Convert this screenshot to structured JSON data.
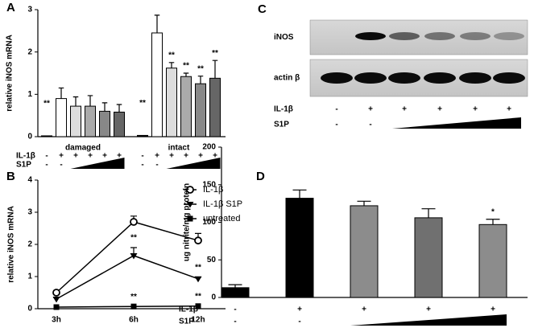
{
  "chart_data": [
    {
      "type": "bar",
      "panel": "A",
      "y_label": "relative iNOS mRNA",
      "ylim": [
        0,
        3
      ],
      "yticks": [
        0,
        1,
        2,
        3
      ],
      "groups": [
        {
          "name": "damaged",
          "values": [
            0.02,
            0.9,
            0.72,
            0.72,
            0.6,
            0.58
          ],
          "errors": [
            null,
            0.25,
            0.22,
            0.25,
            0.2,
            0.18
          ],
          "colors": [
            "#000000",
            "#ffffff",
            "#dddddd",
            "#aaaaaa",
            "#888888",
            "#666666"
          ],
          "annotations": [
            "**",
            null,
            null,
            null,
            null,
            null
          ]
        },
        {
          "name": "intact",
          "values": [
            0.03,
            2.45,
            1.62,
            1.42,
            1.25,
            1.38
          ],
          "errors": [
            null,
            0.42,
            0.13,
            0.08,
            0.18,
            0.42
          ],
          "colors": [
            "#000000",
            "#ffffff",
            "#dddddd",
            "#aaaaaa",
            "#888888",
            "#666666"
          ],
          "annotations": [
            "**",
            null,
            "**",
            "**",
            "**",
            "**"
          ]
        }
      ],
      "rows": [
        {
          "label": "IL-1β",
          "signs": [
            "-",
            "+",
            "+",
            "+",
            "+",
            "+",
            "-",
            "+",
            "+",
            "+",
            "+",
            "+"
          ]
        },
        {
          "label": "S1P",
          "signs": [
            "-",
            "-",
            null,
            null,
            null,
            null,
            "-",
            "-",
            null,
            null,
            null,
            null
          ]
        }
      ]
    },
    {
      "type": "line",
      "panel": "B",
      "y_label": "relative iNOS mRNA",
      "ylim": [
        0,
        4
      ],
      "yticks": [
        0,
        1,
        2,
        3,
        4
      ],
      "categories": [
        "3h",
        "6h",
        "12h"
      ],
      "legend": "upper right",
      "series": [
        {
          "name": "IL-1β",
          "color": "#000000",
          "marker": "circle-open",
          "values": [
            0.5,
            2.7,
            2.12
          ],
          "errors": [
            0.05,
            0.18,
            0.22
          ],
          "annotations": [
            null,
            null,
            null
          ]
        },
        {
          "name": "IL-1β S1P",
          "color": "#000000",
          "marker": "triangle-down",
          "values": [
            0.3,
            1.65,
            0.93
          ],
          "errors": [
            0.05,
            0.25,
            0.05
          ],
          "annotations": [
            null,
            "**",
            "**"
          ]
        },
        {
          "name": "untreated",
          "color": "#000000",
          "marker": "square",
          "values": [
            0.05,
            0.07,
            0.08
          ],
          "errors": [
            null,
            null,
            null
          ],
          "annotations": [
            null,
            "**",
            "**"
          ]
        }
      ]
    },
    {
      "type": "blot",
      "panel": "C",
      "bands": [
        "iNOS",
        "actin β"
      ],
      "rows": [
        {
          "label": "IL-1β",
          "signs": [
            "-",
            "+",
            "+",
            "+",
            "+",
            "+"
          ]
        },
        {
          "label": "S1P",
          "signs": [
            "-",
            "-",
            null,
            null,
            null,
            null
          ]
        }
      ]
    },
    {
      "type": "bar",
      "panel": "D",
      "y_label": "ug nitrite/mg protein",
      "ylim": [
        0,
        200
      ],
      "yticks": [
        0,
        50,
        100,
        150,
        200
      ],
      "groups": [
        {
          "values": [
            13,
            132,
            122,
            106,
            97
          ],
          "errors": [
            4,
            11,
            6,
            12,
            7
          ],
          "colors": [
            "#000000",
            "#000000",
            "#8c8c8c",
            "#707070",
            "#8c8c8c"
          ],
          "annotations": [
            null,
            null,
            null,
            null,
            "*"
          ]
        }
      ],
      "rows": [
        {
          "label": "IL-1β",
          "signs": [
            "-",
            "+",
            "+",
            "+",
            "+"
          ]
        },
        {
          "label": "S1P",
          "signs": [
            "-",
            "-",
            null,
            null,
            null
          ]
        }
      ]
    }
  ]
}
